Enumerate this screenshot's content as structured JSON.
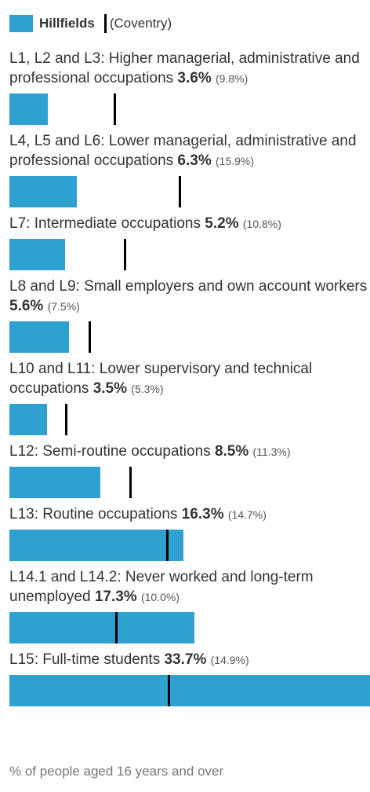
{
  "chart_data": {
    "type": "bar",
    "orientation": "horizontal",
    "categories": [
      "L1, L2 and L3: Higher managerial, administrative and professional occupations",
      "L4, L5 and L6: Lower managerial, administrative and professional occupations",
      "L7: Intermediate occupations",
      "L8 and L9: Small employers and own account workers",
      "L10 and L11: Lower supervisory and technical occupations",
      "L12: Semi-routine occupations",
      "L13: Routine occupations",
      "L14.1 and L14.2: Never worked and long-term unemployed",
      "L15: Full-time students"
    ],
    "series": [
      {
        "name": "Hillfields",
        "color": "#2ea1d1",
        "values": [
          3.6,
          6.3,
          5.2,
          5.6,
          3.5,
          8.5,
          16.3,
          17.3,
          33.7
        ],
        "value_labels": [
          "3.6%",
          "6.3%",
          "5.2%",
          "5.6%",
          "3.5%",
          "8.5%",
          "16.3%",
          "17.3%",
          "33.7%"
        ]
      },
      {
        "name": "(Coventry)",
        "color": "#000000",
        "values": [
          9.8,
          15.9,
          10.8,
          7.5,
          5.3,
          11.3,
          14.7,
          10.0,
          14.9
        ],
        "value_labels": [
          "(9.8%)",
          "(15.9%)",
          "(10.8%)",
          "(7.5%)",
          "(5.3%)",
          "(11.3%)",
          "(14.7%)",
          "(10.0%)",
          "(14.9%)"
        ]
      }
    ],
    "xlim": [
      0,
      33.7
    ],
    "note": "% of people aged 16 years and over"
  }
}
